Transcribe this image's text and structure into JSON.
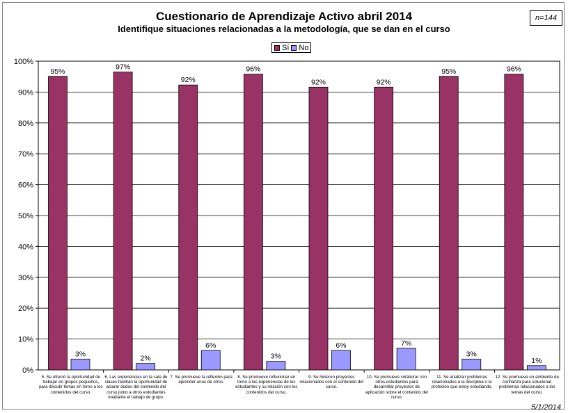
{
  "chart_data": {
    "type": "bar",
    "title": "Cuestionario de Aprendizaje Activo abril 2014",
    "subtitle": "Identifique situaciones relacionadas a la metodología, que se dan en el curso",
    "sample_note": "n=144",
    "date": "5/1/2014",
    "ylim": [
      0,
      100
    ],
    "yticks": [
      "0%",
      "10%",
      "20%",
      "30%",
      "40%",
      "50%",
      "60%",
      "70%",
      "80%",
      "90%",
      "100%"
    ],
    "grid": true,
    "legend_position": "top",
    "categories": [
      "5. Se ofreció la oportunidad de trabajar en grupos pequeños, para discutir temas en torno a los contenidos del curso.",
      "6. Las experiencias en la sala de clases facilitan la oportunidad de aclarar dudas del contenido del curso junto a otros estudiantes mediante el trabajo de grupo.",
      "7. Se promueve la reflexión para aprender unos de otros.",
      "8. Se promueve reflexionar en torno a las experiencias de los estudiantes y su relación con los contenidos del curso.",
      "9. Se hicieron proyectos relacionados con el contenido del curso.",
      "10. Se promueve colaborar con otros estudiantes para desarrollar proyectos de aplicación sobre el contenido del curso.",
      "11. Se analizan problemas relacionados a la disciplina o la profesión que estoy estudiando.",
      "12. Se promueve un ambiente de confianza para solucionar problemas relacionados a los temas del curso."
    ],
    "series": [
      {
        "name": "Sí",
        "color": "#993366",
        "values": [
          95.1,
          96.5,
          92.3,
          95.8,
          91.6,
          91.6,
          95.1,
          95.8
        ],
        "labels": [
          "95%",
          "97%",
          "92%",
          "96%",
          "92%",
          "92%",
          "95%",
          "96%"
        ]
      },
      {
        "name": "No",
        "color": "#9999FF",
        "values": [
          3.5,
          2.1,
          6.3,
          2.8,
          6.3,
          7.0,
          3.5,
          1.4
        ],
        "labels": [
          "3%",
          "2%",
          "6%",
          "3%",
          "6%",
          "7%",
          "3%",
          "1%"
        ]
      }
    ]
  }
}
